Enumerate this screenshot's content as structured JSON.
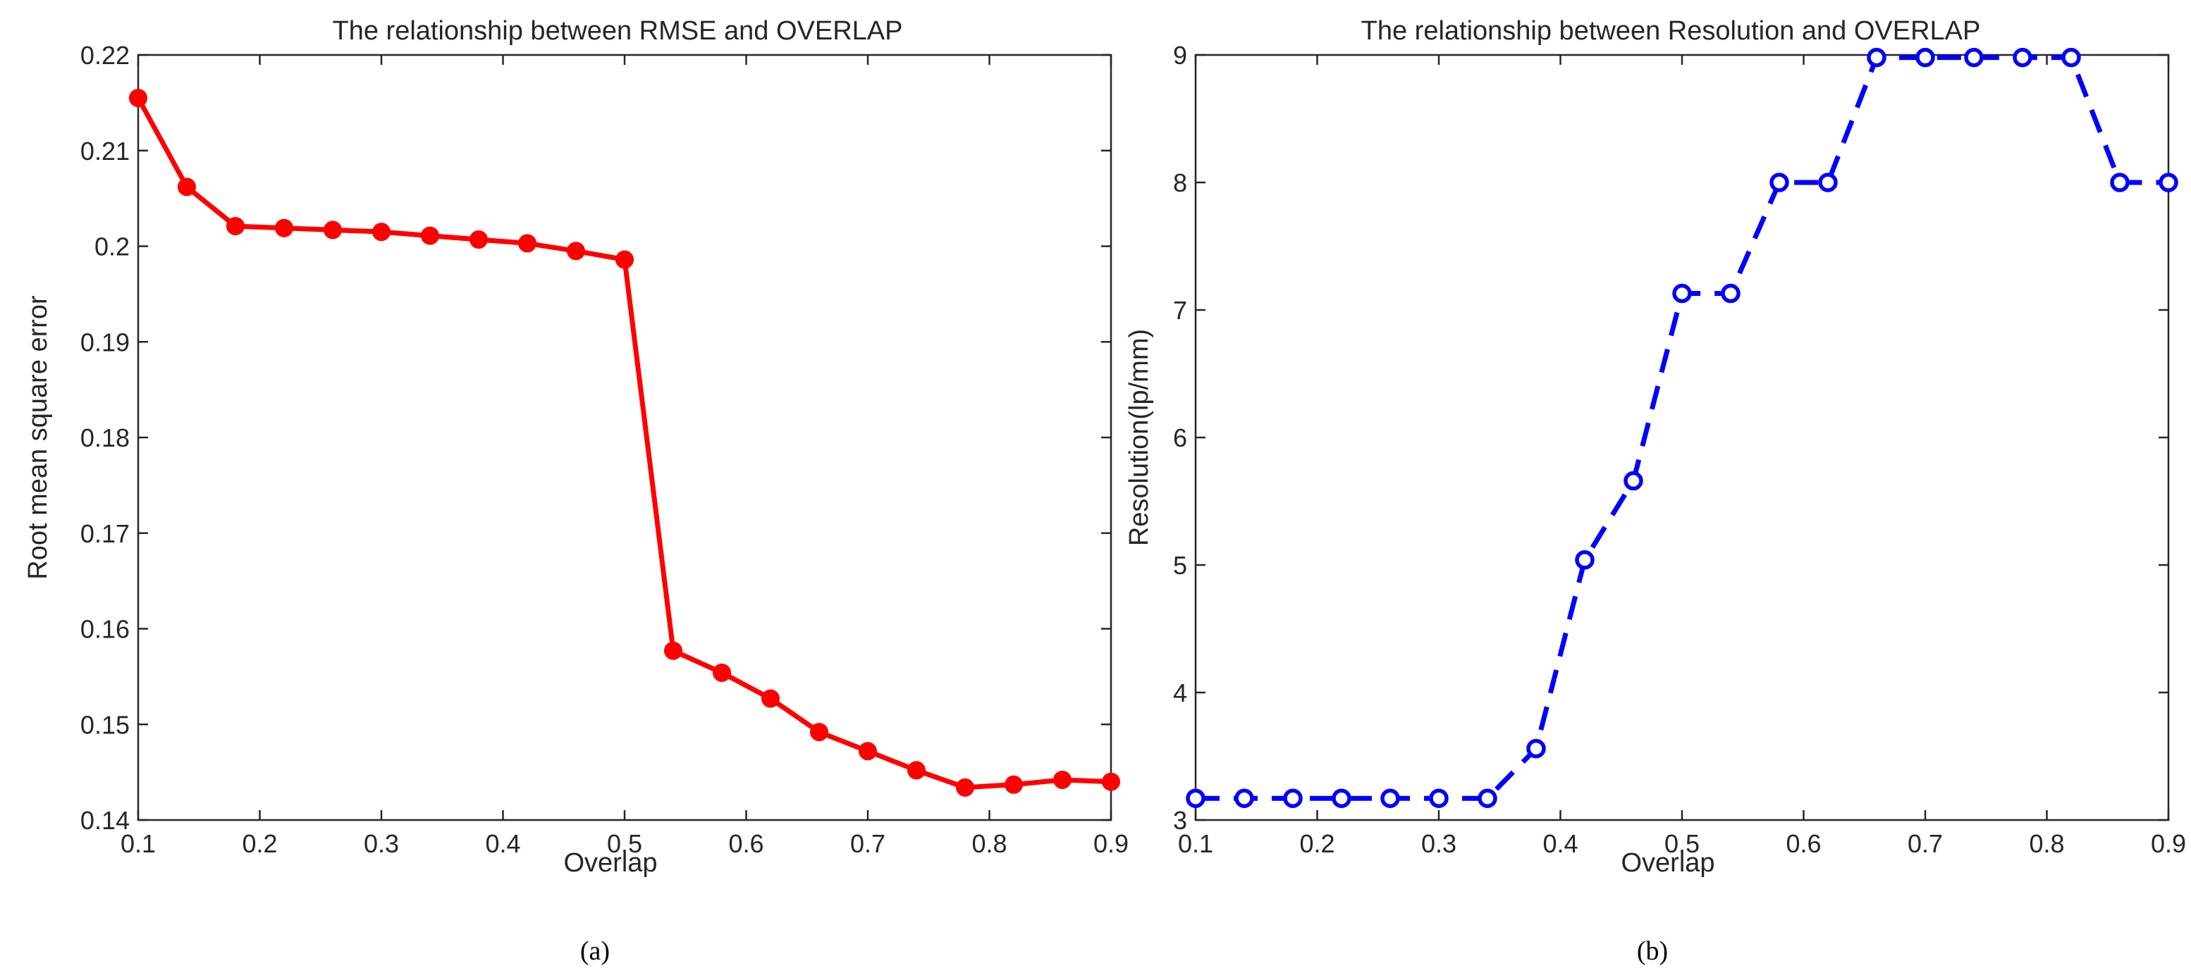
{
  "chart_data": [
    {
      "type": "line",
      "title": "The relationship between RMSE and OVERLAP",
      "xlabel": "Overlap",
      "ylabel": "Root mean square error",
      "caption": "(a)",
      "xlim": [
        0.1,
        0.9
      ],
      "ylim": [
        0.14,
        0.22
      ],
      "xticks": [
        0.1,
        0.2,
        0.3,
        0.4,
        0.5,
        0.6,
        0.7,
        0.8,
        0.9
      ],
      "xtick_labels": [
        "0.1",
        "0.2",
        "0.3",
        "0.4",
        "0.5",
        "0.6",
        "0.7",
        "0.8",
        "0.9"
      ],
      "yticks": [
        0.14,
        0.15,
        0.16,
        0.17,
        0.18,
        0.19,
        0.2,
        0.21,
        0.22
      ],
      "ytick_labels": [
        "0.14",
        "0.15",
        "0.16",
        "0.17",
        "0.18",
        "0.19",
        "0.2",
        "0.21",
        "0.22"
      ],
      "grid": false,
      "series": [
        {
          "name": "RMSE",
          "color": "#ff0000",
          "line_style": "solid",
          "marker": "filled-circle",
          "x": [
            0.1,
            0.14,
            0.18,
            0.22,
            0.26,
            0.3,
            0.34,
            0.38,
            0.42,
            0.46,
            0.5,
            0.54,
            0.58,
            0.62,
            0.66,
            0.7,
            0.74,
            0.78,
            0.82,
            0.86,
            0.9
          ],
          "values": [
            0.2155,
            0.2062,
            0.2021,
            0.2019,
            0.2017,
            0.2015,
            0.2011,
            0.2007,
            0.2003,
            0.1995,
            0.1986,
            0.1577,
            0.1554,
            0.1527,
            0.1492,
            0.1472,
            0.1452,
            0.1434,
            0.1437,
            0.1442,
            0.144
          ]
        }
      ]
    },
    {
      "type": "line",
      "title": "The relationship between Resolution and OVERLAP",
      "xlabel": "Overlap",
      "ylabel": "Resolution(lp/mm)",
      "caption": "(b)",
      "xlim": [
        0.1,
        0.9
      ],
      "ylim": [
        3,
        9
      ],
      "xticks": [
        0.1,
        0.2,
        0.3,
        0.4,
        0.5,
        0.6,
        0.7,
        0.8,
        0.9
      ],
      "xtick_labels": [
        "0.1",
        "0.2",
        "0.3",
        "0.4",
        "0.5",
        "0.6",
        "0.7",
        "0.8",
        "0.9"
      ],
      "yticks": [
        3,
        4,
        5,
        6,
        7,
        8,
        9
      ],
      "ytick_labels": [
        "3",
        "4",
        "5",
        "6",
        "7",
        "8",
        "9"
      ],
      "grid": false,
      "series": [
        {
          "name": "Resolution",
          "color": "#0000ff",
          "line_style": "dashed",
          "marker": "open-circle",
          "x": [
            0.1,
            0.14,
            0.18,
            0.22,
            0.26,
            0.3,
            0.34,
            0.38,
            0.42,
            0.46,
            0.5,
            0.54,
            0.58,
            0.62,
            0.66,
            0.7,
            0.74,
            0.78,
            0.82,
            0.86,
            0.9
          ],
          "values": [
            3.17,
            3.17,
            3.17,
            3.17,
            3.17,
            3.17,
            3.17,
            3.56,
            5.04,
            5.66,
            7.13,
            7.13,
            8.0,
            8.0,
            8.98,
            8.98,
            8.98,
            8.98,
            8.98,
            8.0,
            8.0
          ]
        }
      ]
    }
  ]
}
